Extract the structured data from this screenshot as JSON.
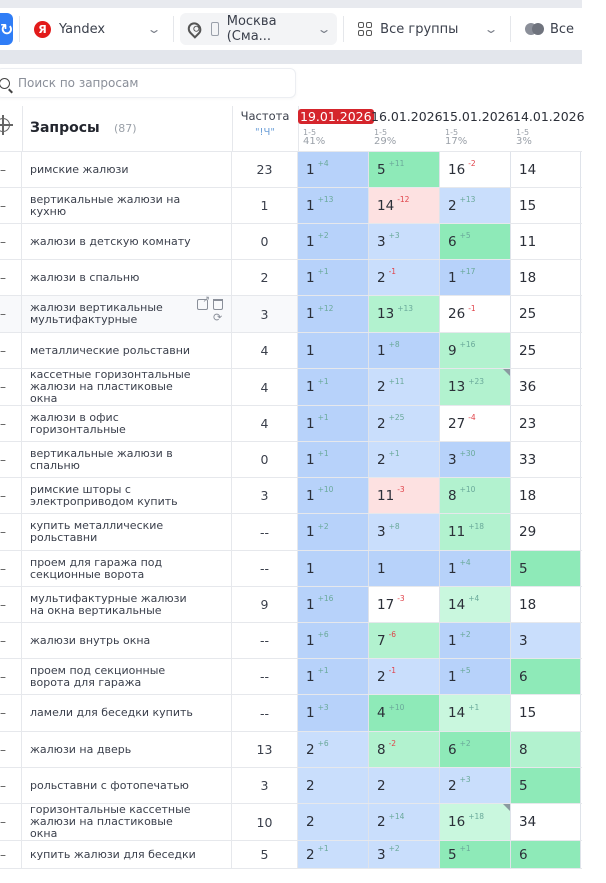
{
  "toolbar": {
    "search_engine": "Yandex",
    "search_engine_icon": "Я",
    "location": "Москва (Сма...",
    "groups": "Все группы",
    "filter": "Все"
  },
  "search": {
    "placeholder": "Поиск по запросам",
    "value": ""
  },
  "table": {
    "header": {
      "queries_label": "Запросы",
      "queries_count": "(87)",
      "freq_label": "Частота",
      "freq_type": "\"!Ч\"",
      "dates": [
        {
          "date": "19.01.2026",
          "range": "1-5",
          "pct": "41%",
          "active": true
        },
        {
          "date": "16.01.2026",
          "range": "1-5",
          "pct": "29%"
        },
        {
          "date": "15.01.2026",
          "range": "1-5",
          "pct": "17%"
        },
        {
          "date": "14.01.2026",
          "range": "1-5",
          "pct": "3%"
        }
      ]
    },
    "rows": [
      {
        "query": "римские жалюзи",
        "freq": "23",
        "h": 36,
        "pos": [
          [
            "1",
            "+4",
            "up",
            "b1"
          ],
          [
            "5",
            "+11",
            "up",
            "g1"
          ],
          [
            "16",
            "-2",
            "dn",
            "w"
          ],
          [
            "14",
            "",
            "",
            "w"
          ]
        ]
      },
      {
        "query": "вертикальные жалюзи на кухню",
        "freq": "1",
        "h": 36,
        "pos": [
          [
            "1",
            "+13",
            "up",
            "b1"
          ],
          [
            "14",
            "-12",
            "dn",
            "r"
          ],
          [
            "2",
            "+13",
            "up",
            "b2"
          ],
          [
            "15",
            "",
            "",
            "w"
          ]
        ]
      },
      {
        "query": "жалюзи в детскую комнату",
        "freq": "0",
        "h": 36,
        "pos": [
          [
            "1",
            "+2",
            "up",
            "b1"
          ],
          [
            "3",
            "+3",
            "up",
            "b2"
          ],
          [
            "6",
            "+5",
            "up",
            "g1"
          ],
          [
            "11",
            "",
            "",
            "w"
          ]
        ]
      },
      {
        "query": "жалюзи в спальню",
        "freq": "2",
        "h": 36,
        "pos": [
          [
            "1",
            "+1",
            "up",
            "b1"
          ],
          [
            "2",
            "-1",
            "dn",
            "b2"
          ],
          [
            "1",
            "+17",
            "up",
            "b1"
          ],
          [
            "18",
            "",
            "",
            "w"
          ]
        ]
      },
      {
        "query": "жалюзи вертикальные мультифактурные",
        "freq": "3",
        "h": 37,
        "actions": true,
        "pos": [
          [
            "1",
            "+12",
            "up",
            "b1"
          ],
          [
            "13",
            "+13",
            "up",
            "g2"
          ],
          [
            "26",
            "-1",
            "dn",
            "w"
          ],
          [
            "25",
            "",
            "",
            "w"
          ]
        ]
      },
      {
        "query": "металлические рольставни",
        "freq": "4",
        "h": 36,
        "pos": [
          [
            "1",
            "",
            "",
            "b1"
          ],
          [
            "1",
            "+8",
            "up",
            "b1"
          ],
          [
            "9",
            "+16",
            "up",
            "g2"
          ],
          [
            "25",
            "",
            "",
            "w"
          ]
        ]
      },
      {
        "query": "кассетные горизонтальные жалюзи на пластиковые окна",
        "freq": "4",
        "h": 37,
        "pos": [
          [
            "1",
            "+1",
            "up",
            "b1"
          ],
          [
            "2",
            "+11",
            "up",
            "b2"
          ],
          [
            "13",
            "+23",
            "up",
            "g2",
            "corner"
          ],
          [
            "36",
            "",
            "",
            "w"
          ]
        ]
      },
      {
        "query": "жалюзи в офис горизонтальные",
        "freq": "4",
        "h": 36,
        "pos": [
          [
            "1",
            "+1",
            "up",
            "b1"
          ],
          [
            "2",
            "+25",
            "up",
            "b2"
          ],
          [
            "27",
            "-4",
            "dn",
            "w"
          ],
          [
            "23",
            "",
            "",
            "w"
          ]
        ]
      },
      {
        "query": "вертикальные жалюзи в спальню",
        "freq": "0",
        "h": 36,
        "pos": [
          [
            "1",
            "+1",
            "up",
            "b1"
          ],
          [
            "2",
            "+1",
            "up",
            "b2"
          ],
          [
            "3",
            "+30",
            "up",
            "b1"
          ],
          [
            "33",
            "",
            "",
            "w"
          ]
        ]
      },
      {
        "query": "римские шторы с электроприводом купить",
        "freq": "3",
        "h": 36,
        "pos": [
          [
            "1",
            "+10",
            "up",
            "b1"
          ],
          [
            "11",
            "-3",
            "dn",
            "r"
          ],
          [
            "8",
            "+10",
            "up",
            "g2"
          ],
          [
            "18",
            "",
            "",
            "w"
          ]
        ]
      },
      {
        "query": "купить металлические рольставни",
        "freq": "--",
        "h": 37,
        "pos": [
          [
            "1",
            "+2",
            "up",
            "b1"
          ],
          [
            "3",
            "+8",
            "up",
            "b2"
          ],
          [
            "11",
            "+18",
            "up",
            "g2"
          ],
          [
            "29",
            "",
            "",
            "w"
          ]
        ]
      },
      {
        "query": "проем для гаража под секционные ворота",
        "freq": "--",
        "h": 36,
        "pos": [
          [
            "1",
            "",
            "",
            "b1"
          ],
          [
            "1",
            "",
            "",
            "b1"
          ],
          [
            "1",
            "+4",
            "up",
            "b1"
          ],
          [
            "5",
            "",
            "",
            "g1"
          ]
        ]
      },
      {
        "query": "мультифактурные жалюзи на окна вертикальные",
        "freq": "9",
        "h": 36,
        "pos": [
          [
            "1",
            "+16",
            "up",
            "b1"
          ],
          [
            "17",
            "-3",
            "dn",
            "w"
          ],
          [
            "14",
            "+4",
            "up",
            "g3"
          ],
          [
            "18",
            "",
            "",
            "w"
          ]
        ]
      },
      {
        "query": "жалюзи внутрь окна",
        "freq": "--",
        "h": 36,
        "pos": [
          [
            "1",
            "+6",
            "up",
            "b1"
          ],
          [
            "7",
            "-6",
            "dn",
            "g2"
          ],
          [
            "1",
            "+2",
            "up",
            "b1"
          ],
          [
            "3",
            "",
            "",
            "b2"
          ]
        ]
      },
      {
        "query": "проем под секционные ворота для гаража",
        "freq": "--",
        "h": 36,
        "pos": [
          [
            "1",
            "+1",
            "up",
            "b1"
          ],
          [
            "2",
            "-1",
            "dn",
            "b2"
          ],
          [
            "1",
            "+5",
            "up",
            "b1"
          ],
          [
            "6",
            "",
            "",
            "g1"
          ]
        ]
      },
      {
        "query": "ламели для беседки купить",
        "freq": "--",
        "h": 37,
        "pos": [
          [
            "1",
            "+3",
            "up",
            "b1"
          ],
          [
            "4",
            "+10",
            "up",
            "g1"
          ],
          [
            "14",
            "+1",
            "up",
            "g3"
          ],
          [
            "15",
            "",
            "",
            "w"
          ]
        ]
      },
      {
        "query": "жалюзи на дверь",
        "freq": "13",
        "h": 36,
        "pos": [
          [
            "2",
            "+6",
            "up",
            "b2"
          ],
          [
            "8",
            "-2",
            "dn",
            "g2"
          ],
          [
            "6",
            "+2",
            "up",
            "g1"
          ],
          [
            "8",
            "",
            "",
            "g2"
          ]
        ]
      },
      {
        "query": "рольставни с фотопечатью",
        "freq": "3",
        "h": 36,
        "pos": [
          [
            "2",
            "",
            "",
            "b2"
          ],
          [
            "2",
            "",
            "",
            "b2"
          ],
          [
            "2",
            "+3",
            "up",
            "b2"
          ],
          [
            "5",
            "",
            "",
            "g1"
          ]
        ]
      },
      {
        "query": "горизонтальные кассетные жалюзи на пластиковые окна",
        "freq": "10",
        "h": 37,
        "pos": [
          [
            "2",
            "",
            "",
            "b2"
          ],
          [
            "2",
            "+14",
            "up",
            "b2"
          ],
          [
            "16",
            "+18",
            "up",
            "g3",
            "corner"
          ],
          [
            "34",
            "",
            "",
            "w"
          ]
        ]
      },
      {
        "query": "купить жалюзи для беседки",
        "freq": "5",
        "h": 28,
        "pos": [
          [
            "2",
            "+1",
            "up",
            "b2"
          ],
          [
            "3",
            "+2",
            "up",
            "b2"
          ],
          [
            "5",
            "+1",
            "up",
            "g1"
          ],
          [
            "6",
            "",
            "",
            "g1"
          ]
        ]
      }
    ]
  }
}
